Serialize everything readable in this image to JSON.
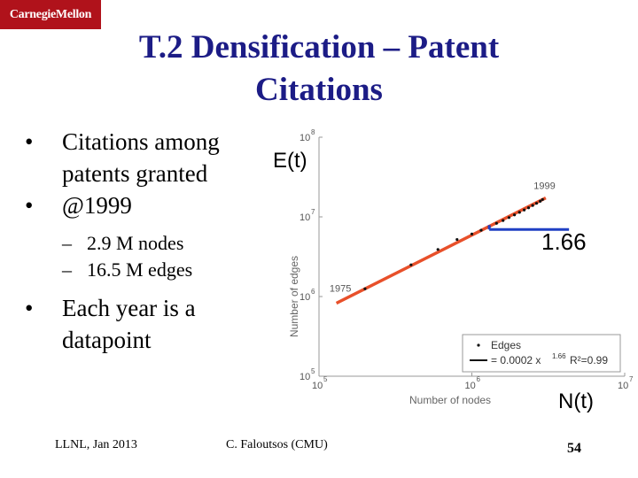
{
  "header": {
    "logo_text": "CarnegieMellon",
    "title_line1": "T.2 Densification – Patent",
    "title_line2": "Citations"
  },
  "bullets": {
    "b1_line1": "Citations among",
    "b1_line2": "patents granted",
    "b2": "@1999",
    "sub1": "2.9 M nodes",
    "sub2": "16.5 M edges",
    "b3_line1": "Each year is a",
    "b3_line2": "datapoint",
    "dot": "•",
    "dash": "–"
  },
  "overlays": {
    "y_label": "E(t)",
    "x_label": "N(t)",
    "slope": "1.66",
    "slope_color": "#1f3fc4",
    "fit_color": "#e8502a"
  },
  "chart_data": {
    "type": "scatter",
    "xlabel": "Number of nodes",
    "ylabel": "Number of edges",
    "x_scale": "log",
    "y_scale": "log",
    "xlim": [
      100000,
      10000000
    ],
    "ylim": [
      100000,
      100000000
    ],
    "x_ticks": [
      "10",
      "10",
      "10"
    ],
    "x_tick_exps": [
      "5",
      "6",
      "7"
    ],
    "y_ticks": [
      "10",
      "10",
      "10",
      "10"
    ],
    "y_tick_exps": [
      "5",
      "6",
      "7",
      "8"
    ],
    "annotations": [
      {
        "text": "1975",
        "x": 200000,
        "y": 1250000
      },
      {
        "text": "1999",
        "x": 2900000,
        "y": 16500000
      }
    ],
    "series": [
      {
        "name": "Edges",
        "x": [
          200000,
          400000,
          600000,
          800000,
          1000000,
          1150000,
          1300000,
          1450000,
          1600000,
          1750000,
          1900000,
          2050000,
          2200000,
          2350000,
          2500000,
          2650000,
          2800000,
          2900000
        ],
        "y": [
          1250000,
          2500000,
          3900000,
          5200000,
          6100000,
          6800000,
          7500000,
          8300000,
          9000000,
          9800000,
          10600000,
          11400000,
          12200000,
          13000000,
          13900000,
          14800000,
          15700000,
          16500000
        ]
      }
    ],
    "fit": {
      "label": "= 0.0002 x",
      "exponent": "1.66",
      "r2": "R²=0.99"
    },
    "legend": {
      "placement": "bottom-right",
      "entries": [
        "Edges",
        "= 0.0002 x"
      ]
    }
  }
}
